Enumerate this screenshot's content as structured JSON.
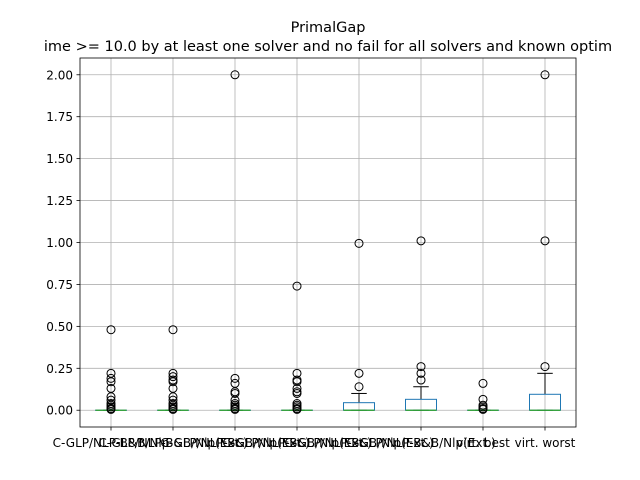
{
  "chart_data": {
    "type": "box",
    "title": "PrimalGap",
    "subtitle": "ime >= 10.0 by at least one solver and no fail for all solvers and known optim",
    "xlabel": "",
    "ylabel": "",
    "ylim": [
      -0.1,
      2.1
    ],
    "yticks": [
      0.0,
      0.25,
      0.5,
      0.75,
      1.0,
      1.25,
      1.5,
      1.75,
      2.0
    ],
    "ytick_labels": [
      "0.00",
      "0.25",
      "0.50",
      "0.75",
      "1.00",
      "1.25",
      "1.50",
      "1.75",
      "2.00"
    ],
    "grid": true,
    "legend": "none",
    "box_color": "#1f77b4",
    "median_color": "#2ca02c",
    "categories": [
      "C-GLP/NLP-B&B/Nlp",
      "C-GLP/NLP-B&B/Nlp(Ext.)",
      "C-GLP/NLP-B&B/Nlp(Ext.)",
      "C-GLP/NLP-B&B/Nlp(Ext.)",
      "C-GLP/NLP-B&B/Nlp(Ext.)",
      "C-GLP/NLP-B&B/Nlp(Ext.)",
      "virt. best",
      "virt. worst"
    ],
    "series": [
      {
        "label": "C-GLP/NLP-B&B/Nlp",
        "q1": 0.0,
        "median": 0.0,
        "q3": 0.0,
        "whisker_low": 0.0,
        "whisker_high": 0.0,
        "outliers": [
          0.48,
          0.22,
          0.19,
          0.17,
          0.13,
          0.08,
          0.06,
          0.04,
          0.03,
          0.02,
          0.01,
          0.005
        ]
      },
      {
        "label": "C-GLP/NLP-B&B/Nlp(Ext.)",
        "q1": 0.0,
        "median": 0.0,
        "q3": 0.0,
        "whisker_low": 0.0,
        "whisker_high": 0.0,
        "outliers": [
          0.48,
          0.22,
          0.2,
          0.18,
          0.17,
          0.13,
          0.08,
          0.06,
          0.04,
          0.03,
          0.02,
          0.01,
          0.005
        ]
      },
      {
        "label": "C-GLP/NLP-B&B/Nlp(Ext.)",
        "q1": 0.0,
        "median": 0.0,
        "q3": 0.0,
        "whisker_low": 0.0,
        "whisker_high": 0.0,
        "outliers": [
          2.0,
          0.19,
          0.16,
          0.11,
          0.1,
          0.06,
          0.04,
          0.03,
          0.02,
          0.01,
          0.005
        ]
      },
      {
        "label": "C-GLP/NLP-B&B/Nlp(Ext.)",
        "q1": 0.0,
        "median": 0.0,
        "q3": 0.0,
        "whisker_low": 0.0,
        "whisker_high": 0.0,
        "outliers": [
          0.74,
          0.22,
          0.18,
          0.17,
          0.13,
          0.11,
          0.1,
          0.04,
          0.03,
          0.02,
          0.01,
          0.005
        ]
      },
      {
        "label": "C-GLP/NLP-B&B/Nlp(Ext.)",
        "q1": 0.0,
        "median": 0.0,
        "q3": 0.045,
        "whisker_low": 0.0,
        "whisker_high": 0.1,
        "outliers": [
          0.995,
          0.22,
          0.14
        ]
      },
      {
        "label": "C-GLP/NLP-B&B/Nlp(Ext.)",
        "q1": 0.0,
        "median": 0.0,
        "q3": 0.065,
        "whisker_low": 0.0,
        "whisker_high": 0.14,
        "outliers": [
          1.01,
          0.26,
          0.22,
          0.18
        ]
      },
      {
        "label": "virt. best",
        "q1": 0.0,
        "median": 0.0,
        "q3": 0.0,
        "whisker_low": 0.0,
        "whisker_high": 0.0,
        "outliers": [
          0.16,
          0.065,
          0.03,
          0.02,
          0.01,
          0.005
        ]
      },
      {
        "label": "virt. worst",
        "q1": 0.0,
        "median": 0.0,
        "q3": 0.095,
        "whisker_low": 0.0,
        "whisker_high": 0.22,
        "outliers": [
          2.0,
          1.01,
          0.26
        ]
      }
    ]
  }
}
